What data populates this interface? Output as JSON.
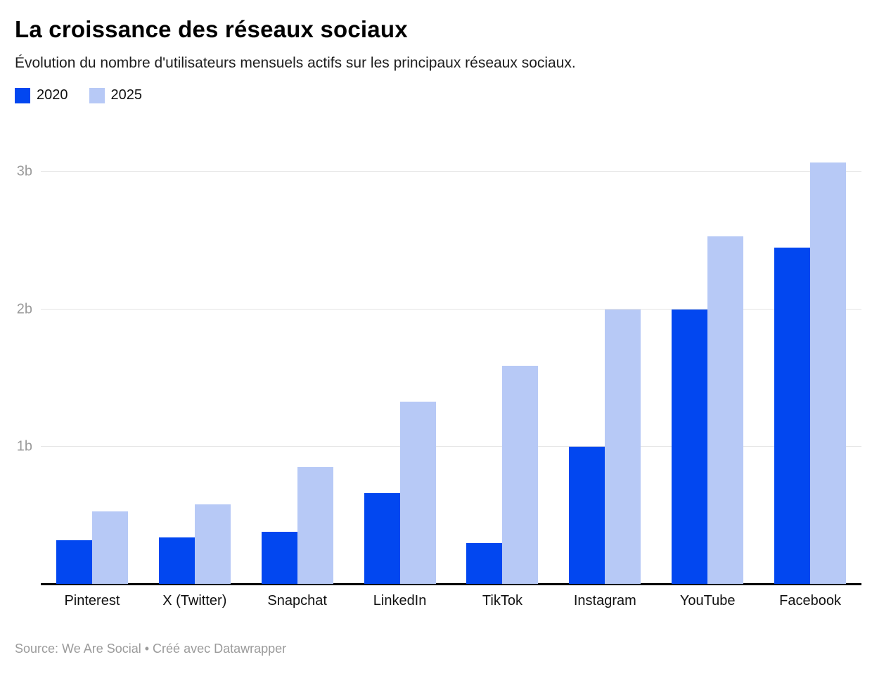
{
  "header": {
    "title": "La croissance des réseaux sociaux",
    "subtitle": "Évolution du nombre d'utilisateurs mensuels actifs sur les principaux réseaux sociaux."
  },
  "footer": {
    "source_line": "Source: We Are Social • Créé avec Datawrapper"
  },
  "colors": {
    "series_2020": "#0247f0",
    "series_2025": "#b7c9f6",
    "gridline": "#e4e4e4",
    "axis_line": "#000000",
    "tick_text": "#9b9b9b",
    "footer_text": "#9b9b9b"
  },
  "chart_data": {
    "type": "bar",
    "title": "La croissance des réseaux sociaux",
    "subtitle": "Évolution du nombre d'utilisateurs mensuels actifs sur les principaux réseaux sociaux.",
    "unit": "billions of monthly active users",
    "categories": [
      "Pinterest",
      "X (Twitter)",
      "Snapchat",
      "LinkedIn",
      "TikTok",
      "Instagram",
      "YouTube",
      "Facebook"
    ],
    "series": [
      {
        "name": "2020",
        "color": "#0247f0",
        "values": [
          0.32,
          0.34,
          0.38,
          0.66,
          0.3,
          1.0,
          2.0,
          2.45
        ]
      },
      {
        "name": "2025",
        "color": "#b7c9f6",
        "values": [
          0.53,
          0.58,
          0.85,
          1.33,
          1.59,
          2.0,
          2.53,
          3.07
        ]
      }
    ],
    "xlabel": "",
    "ylabel": "",
    "ylim": [
      0,
      3.21
    ],
    "yticks": [
      {
        "value": 1,
        "label": "1b"
      },
      {
        "value": 2,
        "label": "2b"
      },
      {
        "value": 3,
        "label": "3b"
      }
    ],
    "grid": "horizontal",
    "legend_position": "top-left",
    "source": "We Are Social",
    "credit": "Créé avec Datawrapper"
  }
}
